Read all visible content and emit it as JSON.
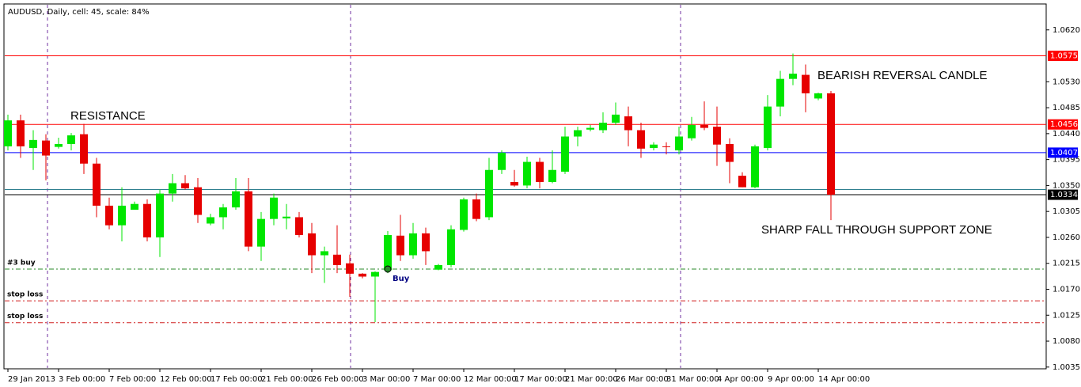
{
  "chart_data": {
    "type": "candlestick",
    "title": "AUDUSD, Daily, cell: 45, scale: 84%",
    "categories": [
      "29 Jan 2013",
      null,
      null,
      null,
      "3 Feb 00:00",
      null,
      null,
      null,
      "7 Feb 00:00",
      null,
      null,
      null,
      "12 Feb 00:00",
      null,
      null,
      null,
      "17 Feb 00:00",
      null,
      null,
      null,
      "21 Feb 00:00",
      null,
      null,
      null,
      "26 Feb 00:00",
      null,
      null,
      null,
      "3 Mar 00:00",
      null,
      null,
      null,
      "7 Mar 00:00",
      null,
      null,
      null,
      "12 Mar 00:00",
      null,
      null,
      null,
      "17 Mar 00:00",
      null,
      null,
      null,
      "21 Mar 00:00",
      null,
      null,
      null,
      "26 Mar 00:00",
      null,
      null,
      null,
      "31 Mar 00:00",
      null,
      null,
      null,
      "4 Apr 00:00",
      null,
      null,
      null,
      "9 Apr 00:00",
      null,
      null,
      null,
      "14 Apr 00:00",
      null
    ],
    "open": [
      1.0418,
      1.0463,
      1.0415,
      1.0428,
      1.0417,
      1.0422,
      1.0439,
      1.0388,
      1.0315,
      1.0281,
      1.0308,
      1.0318,
      1.026,
      1.0336,
      1.0354,
      1.0347,
      1.0284,
      1.0295,
      1.0312,
      1.034,
      1.0244,
      1.0292,
      1.0293,
      1.0295,
      1.0267,
      1.0229,
      1.023,
      1.0215,
      1.0197,
      1.0192,
      1.0203,
      1.0263,
      1.0229,
      1.0267,
      1.0204,
      1.0212,
      1.0273,
      1.0326,
      1.0295,
      1.0377,
      1.0356,
      1.035,
      1.0391,
      1.0356,
      1.0374,
      1.0435,
      1.0447,
      1.0446,
      1.0459,
      1.047,
      1.0446,
      1.0415,
      1.0418,
      1.0411,
      1.0432,
      1.0455,
      1.0452,
      1.0422,
      1.0367,
      1.0347,
      1.0415,
      1.0487,
      1.0535,
      1.0542,
      1.0501,
      1.051
    ],
    "high": [
      1.0473,
      1.0473,
      1.0446,
      1.0439,
      1.0433,
      1.0441,
      1.0457,
      1.0398,
      1.0329,
      1.0347,
      1.0322,
      1.0326,
      1.0343,
      1.037,
      1.0368,
      1.0363,
      1.0301,
      1.0318,
      1.0363,
      1.0363,
      1.0304,
      1.0336,
      1.0318,
      1.0304,
      1.0285,
      1.0244,
      1.0281,
      1.023,
      1.0198,
      1.0201,
      1.0271,
      1.0299,
      1.0285,
      1.0277,
      1.0214,
      1.0281,
      1.0329,
      1.0336,
      1.0398,
      1.0411,
      1.0377,
      1.04,
      1.0398,
      1.0411,
      1.0452,
      1.0452,
      1.0455,
      1.0477,
      1.0494,
      1.0487,
      1.0459,
      1.0425,
      1.0425,
      1.0452,
      1.0469,
      1.0496,
      1.0487,
      1.0432,
      1.0373,
      1.0421,
      1.0507,
      1.0549,
      1.0579,
      1.056,
      1.0511,
      1.0514
    ],
    "low": [
      1.0411,
      1.0398,
      1.0377,
      1.0359,
      1.0414,
      1.0411,
      1.037,
      1.0295,
      1.0274,
      1.0253,
      1.0308,
      1.0253,
      1.0226,
      1.0322,
      1.0343,
      1.0285,
      1.0281,
      1.0274,
      1.0308,
      1.0236,
      1.0219,
      1.0281,
      1.0274,
      1.026,
      1.0198,
      1.0181,
      1.0198,
      1.0157,
      1.0189,
      1.0113,
      1.0198,
      1.0219,
      1.0223,
      1.0212,
      1.0203,
      1.0208,
      1.027,
      1.0288,
      1.029,
      1.037,
      1.0348,
      1.0345,
      1.0345,
      1.0354,
      1.037,
      1.0418,
      1.0444,
      1.0441,
      1.0455,
      1.0418,
      1.0398,
      1.0411,
      1.0404,
      1.0404,
      1.0428,
      1.0446,
      1.0384,
      1.0354,
      1.0347,
      1.0345,
      1.0411,
      1.047,
      1.0524,
      1.0477,
      1.0498,
      1.029
    ],
    "close": [
      1.0463,
      1.0418,
      1.0429,
      1.0402,
      1.0422,
      1.0437,
      1.0388,
      1.0315,
      1.0281,
      1.0315,
      1.0318,
      1.026,
      1.0336,
      1.0354,
      1.0345,
      1.0299,
      1.0295,
      1.0312,
      1.034,
      1.0244,
      1.0292,
      1.0329,
      1.0296,
      1.0264,
      1.0229,
      1.0236,
      1.0212,
      1.0197,
      1.0192,
      1.02,
      1.0264,
      1.0229,
      1.0267,
      1.0236,
      1.0212,
      1.0274,
      1.0326,
      1.0292,
      1.0377,
      1.0407,
      1.035,
      1.0391,
      1.0356,
      1.0377,
      1.0435,
      1.0446,
      1.045,
      1.0459,
      1.0473,
      1.0446,
      1.0414,
      1.0421,
      1.0417,
      1.0435,
      1.0455,
      1.045,
      1.0421,
      1.0391,
      1.0347,
      1.0418,
      1.0487,
      1.0535,
      1.0544,
      1.051,
      1.051,
      1.0334
    ],
    "up_color": "#00e600",
    "down_color": "#e60000",
    "ylim": [
      1.0032,
      1.0665
    ],
    "yticks": [
      {
        "value": 1.062,
        "label": "1.0620"
      },
      {
        "value": 1.053,
        "label": "1.0530"
      },
      {
        "value": 1.0485,
        "label": "1.0485"
      },
      {
        "value": 1.044,
        "label": "1.0440"
      },
      {
        "value": 1.0395,
        "label": "1.0395"
      },
      {
        "value": 1.035,
        "label": "1.0350"
      },
      {
        "value": 1.0305,
        "label": "1.0305"
      },
      {
        "value": 1.026,
        "label": "1.0260"
      },
      {
        "value": 1.0215,
        "label": "1.0215"
      },
      {
        "value": 1.017,
        "label": "1.0170"
      },
      {
        "value": 1.0125,
        "label": "1.0125"
      },
      {
        "value": 1.008,
        "label": "1.0080"
      },
      {
        "value": 1.0035,
        "label": "1.0035"
      }
    ],
    "levels": [
      {
        "value": 1.0575,
        "label": "1.0575",
        "color": "#ff0000"
      },
      {
        "value": 1.0456,
        "label": "1.0456",
        "color": "#ff0000"
      },
      {
        "value": 1.0407,
        "label": "1.0407",
        "color": "#0000ff"
      },
      {
        "value": 1.0343,
        "color": "#2f7f8f"
      },
      {
        "value": 1.0334,
        "label": "1.0334",
        "color": "#000000"
      }
    ],
    "orders": [
      {
        "label": "#3 buy",
        "value": 1.0205,
        "color": "#2a8a2a"
      },
      {
        "label": "stop loss",
        "value": 1.015,
        "color": "#d02020"
      },
      {
        "label": "stop loss",
        "value": 1.0112,
        "color": "#d02020"
      }
    ],
    "trade_label": "Buy",
    "annotations": [
      "RESISTANCE",
      "BEARISH REVERSAL CANDLE",
      "SHARP FALL THROUGH SUPPORT ZONE"
    ]
  }
}
